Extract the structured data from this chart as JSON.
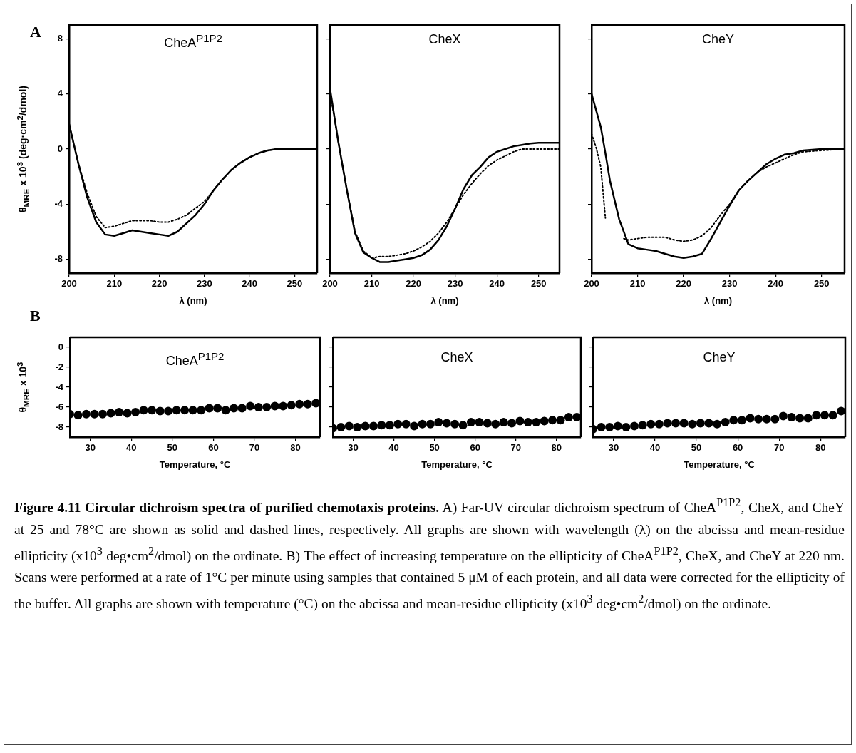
{
  "chart_data": [
    {
      "type": "line",
      "title": "CheA$^{P1P2}$",
      "xlabel": "λ (nm)",
      "ylabel": "θ$_{MRE}$ x 10$^{3}$ (deg·cm$^{2}$/dmol)",
      "annotations": [
        "A"
      ],
      "xlim": [
        200,
        255
      ],
      "ylim": [
        -9,
        9
      ],
      "xticks": [
        200,
        210,
        220,
        230,
        240,
        250
      ],
      "yticks": [
        -8,
        -4,
        0,
        4,
        8
      ],
      "series": [
        {
          "color": "#000000",
          "line_style": "solid",
          "x": [
            200,
            202,
            204,
            206,
            208,
            210,
            212,
            214,
            216,
            218,
            220,
            222,
            224,
            226,
            228,
            230,
            232,
            234,
            236,
            238,
            240,
            242,
            244,
            246,
            250,
            255
          ],
          "values": [
            1.8,
            -1,
            -3.5,
            -5.3,
            -6.2,
            -6.3,
            -6.1,
            -5.9,
            -6.0,
            -6.1,
            -6.2,
            -6.3,
            -6.0,
            -5.4,
            -4.8,
            -4.0,
            -3.0,
            -2.2,
            -1.5,
            -1.0,
            -0.6,
            -0.3,
            -0.1,
            0,
            0,
            0
          ]
        },
        {
          "color": "#000000",
          "line_style": "dotted",
          "x": [
            200,
            202,
            204,
            206,
            208,
            210,
            212,
            214,
            216,
            218,
            220,
            222,
            224,
            226,
            228,
            230,
            232,
            234,
            236,
            238,
            240,
            242,
            244,
            246,
            250,
            255
          ],
          "values": [
            1.8,
            -1,
            -3.2,
            -4.9,
            -5.7,
            -5.6,
            -5.4,
            -5.2,
            -5.2,
            -5.2,
            -5.3,
            -5.3,
            -5.1,
            -4.8,
            -4.3,
            -3.8,
            -3.0,
            -2.2,
            -1.5,
            -1.0,
            -0.6,
            -0.3,
            -0.1,
            0,
            0,
            0
          ]
        }
      ]
    },
    {
      "type": "line",
      "title": "CheX",
      "xlabel": "λ (nm)",
      "tick_labels": "x",
      "xlim": [
        200,
        255
      ],
      "ylim": [
        -9,
        9
      ],
      "xticks": [
        200,
        210,
        220,
        230,
        240,
        250
      ],
      "yticks": [
        -8,
        -4,
        0,
        4,
        8
      ],
      "series": [
        {
          "color": "#000000",
          "line_style": "solid",
          "x": [
            200,
            202,
            204,
            206,
            208,
            210,
            212,
            214,
            216,
            218,
            220,
            222,
            224,
            226,
            228,
            230,
            232,
            234,
            236,
            238,
            240,
            242,
            244,
            246,
            248,
            250,
            255
          ],
          "values": [
            4.4,
            0.5,
            -2.9,
            -6.1,
            -7.5,
            -7.9,
            -8.2,
            -8.2,
            -8.1,
            -8.0,
            -7.9,
            -7.7,
            -7.3,
            -6.6,
            -5.6,
            -4.3,
            -2.9,
            -1.9,
            -1.3,
            -0.6,
            -0.2,
            0,
            0.2,
            0.3,
            0.4,
            0.45,
            0.45
          ]
        },
        {
          "color": "#000000",
          "line_style": "dotted",
          "x": [
            200,
            202,
            204,
            206,
            208,
            210,
            212,
            214,
            216,
            218,
            220,
            222,
            224,
            226,
            228,
            230,
            232,
            234,
            236,
            238,
            240,
            242,
            244,
            246,
            250,
            255
          ],
          "values": [
            4.2,
            0.5,
            -2.9,
            -6.0,
            -7.4,
            -7.9,
            -7.8,
            -7.8,
            -7.7,
            -7.6,
            -7.4,
            -7.1,
            -6.7,
            -6.1,
            -5.3,
            -4.3,
            -3.3,
            -2.5,
            -1.8,
            -1.2,
            -0.8,
            -0.5,
            -0.2,
            0,
            0,
            0
          ]
        }
      ]
    },
    {
      "type": "line",
      "title": "CheY",
      "xlabel": "λ (nm)",
      "tick_labels": "x",
      "xlim": [
        200,
        255
      ],
      "ylim": [
        -9,
        9
      ],
      "xticks": [
        200,
        210,
        220,
        230,
        240,
        250
      ],
      "yticks": [
        -8,
        -4,
        0,
        4,
        8
      ],
      "series": [
        {
          "color": "#000000",
          "line_style": "solid",
          "x": [
            200,
            202,
            203,
            204,
            206,
            208,
            210,
            212,
            214,
            216,
            218,
            220,
            222,
            224,
            226,
            228,
            230,
            232,
            234,
            236,
            238,
            240,
            242,
            244,
            246,
            250,
            255
          ],
          "values": [
            4,
            1.6,
            -0.3,
            -2.3,
            -5.1,
            -6.9,
            -7.2,
            -7.3,
            -7.4,
            -7.6,
            -7.8,
            -7.9,
            -7.8,
            -7.6,
            -6.5,
            -5.3,
            -4.1,
            -3.0,
            -2.3,
            -1.7,
            -1.1,
            -0.7,
            -0.4,
            -0.3,
            -0.1,
            0,
            0
          ]
        },
        {
          "color": "#000000",
          "line_style": "dotted",
          "x": [
            200,
            201,
            202,
            203,
            205,
            207,
            208,
            210,
            212,
            214,
            216,
            218,
            220,
            222,
            224,
            226,
            228,
            230,
            232,
            234,
            236,
            238,
            240,
            242,
            244,
            246,
            250,
            255
          ],
          "values": [
            1.1,
            0.1,
            -1.3,
            -5.0,
            null,
            -6.5,
            -6.6,
            -6.5,
            -6.4,
            -6.4,
            -6.4,
            -6.6,
            -6.7,
            -6.6,
            -6.3,
            -5.7,
            -4.8,
            -4.0,
            -3.0,
            -2.3,
            -1.7,
            -1.3,
            -1.0,
            -0.7,
            -0.4,
            -0.2,
            -0.1,
            0
          ]
        }
      ]
    },
    {
      "type": "scatter",
      "title": "CheA$^{P1P2}$",
      "xlabel": "Temperature, °C",
      "ylabel": "θ$_{MRE}$ x 10$^{3}$",
      "annotations": [
        "B"
      ],
      "marker": "circle",
      "xlim": [
        25,
        86
      ],
      "ylim": [
        -9,
        1
      ],
      "xticks": [
        30,
        40,
        50,
        60,
        70,
        80
      ],
      "yticks": [
        0,
        -2,
        -4,
        -6,
        -8
      ],
      "series": [
        {
          "color": "#000000",
          "x": [
            25,
            27,
            29,
            31,
            33,
            35,
            37,
            39,
            41,
            43,
            45,
            47,
            49,
            51,
            53,
            55,
            57,
            59,
            61,
            63,
            65,
            67,
            69,
            71,
            73,
            75,
            77,
            79,
            81,
            83,
            85
          ],
          "values": [
            -6.7,
            -6.8,
            -6.7,
            -6.7,
            -6.7,
            -6.6,
            -6.5,
            -6.6,
            -6.5,
            -6.3,
            -6.3,
            -6.4,
            -6.4,
            -6.3,
            -6.3,
            -6.3,
            -6.3,
            -6.1,
            -6.1,
            -6.3,
            -6.1,
            -6.1,
            -5.9,
            -6.0,
            -6.0,
            -5.9,
            -5.9,
            -5.8,
            -5.7,
            -5.7,
            -5.6
          ]
        }
      ]
    },
    {
      "type": "scatter",
      "title": "CheX",
      "xlabel": "Temperature, °C",
      "tick_labels": "x",
      "marker": "circle",
      "xlim": [
        25,
        86
      ],
      "ylim": [
        -9,
        1
      ],
      "xticks": [
        30,
        40,
        50,
        60,
        70,
        80
      ],
      "yticks": [
        0,
        -2,
        -4,
        -6,
        -8
      ],
      "series": [
        {
          "color": "#000000",
          "x": [
            25,
            27,
            29,
            31,
            33,
            35,
            37,
            39,
            41,
            43,
            45,
            47,
            49,
            51,
            53,
            55,
            57,
            59,
            61,
            63,
            65,
            67,
            69,
            71,
            73,
            75,
            77,
            79,
            81,
            83,
            85
          ],
          "values": [
            -8.1,
            -8.0,
            -7.9,
            -8.0,
            -7.9,
            -7.9,
            -7.8,
            -7.8,
            -7.7,
            -7.7,
            -7.9,
            -7.7,
            -7.7,
            -7.5,
            -7.6,
            -7.7,
            -7.8,
            -7.5,
            -7.5,
            -7.6,
            -7.7,
            -7.5,
            -7.6,
            -7.4,
            -7.5,
            -7.5,
            -7.4,
            -7.3,
            -7.3,
            -7.0,
            -7.0
          ]
        }
      ]
    },
    {
      "type": "scatter",
      "title": "CheY",
      "xlabel": "Temperature, °C",
      "tick_labels": "x",
      "marker": "circle",
      "xlim": [
        25,
        86
      ],
      "ylim": [
        -9,
        1
      ],
      "xticks": [
        30,
        40,
        50,
        60,
        70,
        80
      ],
      "yticks": [
        0,
        -2,
        -4,
        -6,
        -8
      ],
      "annotations": [
        "Figure 4.11 Circular dichroism spectra of purified chemotaxis proteins.",
        "A) Far-UV circular dichroism spectrum of CheA$^{P1P2}$, CheX, and CheY at 25 and 78°C are shown as solid and dashed lines, respectively. All graphs are shown with wavelength (λ) on the abcissa and mean-residue ellipticity (x10$^{3}$ deg•cm$^{2}$/dmol) on the ordinate. B) The effect of increasing temperature on the ellipticity of CheA$^{P1P2}$, CheX, and CheY at 220 nm. Scans were performed at a rate of 1°C per minute using samples that contained 5 μM of each protein, and all data were corrected for the ellipticity of the buffer. All graphs are shown with temperature (°C) on the abcissa and mean-residue ellipticity (x10$^{3}$ deg•cm$^{2}$/dmol) on the ordinate."
      ],
      "series": [
        {
          "color": "#000000",
          "x": [
            25,
            27,
            29,
            31,
            33,
            35,
            37,
            39,
            41,
            43,
            45,
            47,
            49,
            51,
            53,
            55,
            57,
            59,
            61,
            63,
            65,
            67,
            69,
            71,
            73,
            75,
            77,
            79,
            81,
            83,
            85
          ],
          "values": [
            -8.2,
            -8.0,
            -8.0,
            -7.9,
            -8.0,
            -7.9,
            -7.8,
            -7.7,
            -7.7,
            -7.6,
            -7.6,
            -7.6,
            -7.7,
            -7.6,
            -7.6,
            -7.7,
            -7.5,
            -7.3,
            -7.3,
            -7.1,
            -7.2,
            -7.2,
            -7.2,
            -6.9,
            -7.0,
            -7.1,
            -7.1,
            -6.8,
            -6.8,
            -6.8,
            -6.4
          ]
        }
      ]
    }
  ]
}
